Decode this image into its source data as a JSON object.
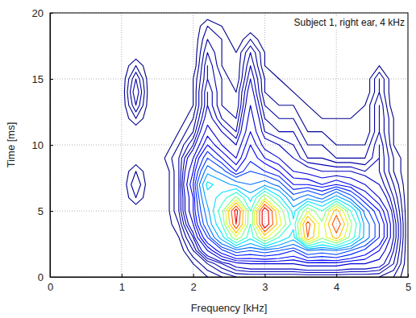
{
  "chart_data": {
    "type": "contour",
    "annotations": [
      "Subject 1, right ear, 4 kHz"
    ],
    "x_label": "Frequency [kHz]",
    "y_label": "Time [ms]",
    "xlim": [
      0,
      5
    ],
    "ylim": [
      0,
      20
    ],
    "xticks": [
      0,
      1,
      2,
      3,
      4,
      5
    ],
    "yticks": [
      0,
      5,
      10,
      15,
      20
    ],
    "grid": true,
    "x": [
      1.0,
      1.2,
      1.4,
      1.6,
      1.8,
      2.0,
      2.2,
      2.4,
      2.6,
      2.8,
      3.0,
      3.2,
      3.4,
      3.6,
      3.8,
      4.0,
      4.2,
      4.4,
      4.6,
      4.8,
      5.0
    ],
    "y": [
      0,
      1,
      2,
      3,
      4,
      5,
      6,
      7,
      8,
      9,
      10,
      11,
      12,
      13,
      14,
      15,
      16,
      17,
      18,
      19,
      20
    ],
    "levels": [
      1,
      2,
      3,
      4,
      5,
      6,
      8,
      10,
      12,
      15,
      18,
      22,
      27,
      33,
      40,
      48,
      56,
      65,
      75,
      85
    ],
    "z": [
      [
        0,
        0,
        0,
        0,
        0,
        0,
        1,
        2,
        3,
        3,
        3,
        3,
        3,
        3,
        3,
        3,
        3,
        3,
        3,
        2,
        0
      ],
      [
        0,
        0,
        0,
        0,
        0,
        1,
        3,
        5,
        7,
        8,
        8,
        8,
        8,
        9,
        9,
        9,
        8,
        8,
        7,
        4,
        0
      ],
      [
        0,
        0,
        0,
        0,
        0,
        3,
        8,
        14,
        20,
        18,
        20,
        18,
        15,
        22,
        20,
        22,
        18,
        14,
        10,
        5,
        0
      ],
      [
        0,
        0,
        0,
        0,
        1,
        5,
        15,
        30,
        55,
        35,
        60,
        40,
        30,
        75,
        50,
        70,
        45,
        25,
        15,
        6,
        0
      ],
      [
        0,
        0,
        0,
        0,
        2,
        8,
        22,
        40,
        85,
        40,
        95,
        60,
        35,
        80,
        50,
        85,
        50,
        25,
        15,
        6,
        0
      ],
      [
        0,
        0,
        0,
        0,
        3,
        10,
        25,
        45,
        90,
        40,
        95,
        55,
        30,
        55,
        40,
        70,
        40,
        20,
        12,
        5,
        0
      ],
      [
        0,
        2,
        0,
        0,
        3,
        10,
        30,
        35,
        50,
        30,
        55,
        35,
        20,
        25,
        20,
        30,
        20,
        12,
        8,
        4,
        0
      ],
      [
        0,
        3,
        0,
        0,
        3,
        12,
        35,
        30,
        25,
        22,
        25,
        20,
        12,
        12,
        10,
        12,
        10,
        8,
        6,
        3,
        0
      ],
      [
        0,
        2,
        0,
        0,
        3,
        10,
        25,
        20,
        12,
        18,
        15,
        12,
        8,
        7,
        6,
        6,
        6,
        5,
        5,
        2,
        0
      ],
      [
        0,
        0,
        0,
        1,
        3,
        8,
        18,
        12,
        8,
        14,
        10,
        8,
        6,
        4,
        4,
        3,
        3,
        3,
        5,
        2,
        0
      ],
      [
        0,
        0,
        0,
        0,
        2,
        5,
        12,
        8,
        6,
        12,
        7,
        6,
        5,
        3,
        3,
        2,
        2,
        2,
        5,
        1,
        0
      ],
      [
        0,
        0,
        0,
        0,
        1,
        3,
        9,
        6,
        4,
        10,
        5,
        4,
        4,
        2,
        2,
        1,
        1,
        1,
        4,
        1,
        0
      ],
      [
        0,
        2,
        0,
        0,
        0,
        2,
        7,
        4,
        3,
        9,
        4,
        3,
        3,
        1,
        1,
        1,
        1,
        1,
        4,
        1,
        0
      ],
      [
        0,
        4,
        0,
        0,
        0,
        1,
        6,
        3,
        2,
        8,
        3,
        2,
        2,
        1,
        0,
        0,
        0,
        1,
        4,
        0,
        0
      ],
      [
        0,
        5,
        0,
        0,
        0,
        1,
        6,
        3,
        2,
        7,
        2,
        1,
        1,
        0,
        0,
        0,
        0,
        0,
        3,
        0,
        0
      ],
      [
        0,
        4,
        0,
        0,
        0,
        1,
        5,
        3,
        1,
        6,
        2,
        1,
        0,
        0,
        0,
        0,
        0,
        0,
        3,
        0,
        0
      ],
      [
        0,
        2,
        0,
        0,
        0,
        0,
        5,
        2,
        1,
        5,
        1,
        0,
        0,
        0,
        0,
        0,
        0,
        0,
        1,
        0,
        0
      ],
      [
        0,
        0,
        0,
        0,
        0,
        0,
        4,
        2,
        1,
        4,
        1,
        0,
        0,
        0,
        0,
        0,
        0,
        0,
        0,
        0,
        0
      ],
      [
        0,
        0,
        0,
        0,
        0,
        0,
        3,
        2,
        0,
        2,
        0,
        0,
        0,
        0,
        0,
        0,
        0,
        0,
        0,
        0,
        0
      ],
      [
        0,
        0,
        0,
        0,
        0,
        0,
        2,
        1,
        0,
        0,
        0,
        0,
        0,
        0,
        0,
        0,
        0,
        0,
        0,
        0,
        0
      ],
      [
        0,
        0,
        0,
        0,
        0,
        0,
        0,
        0,
        0,
        0,
        0,
        0,
        0,
        0,
        0,
        0,
        0,
        0,
        0,
        0,
        0
      ]
    ]
  }
}
